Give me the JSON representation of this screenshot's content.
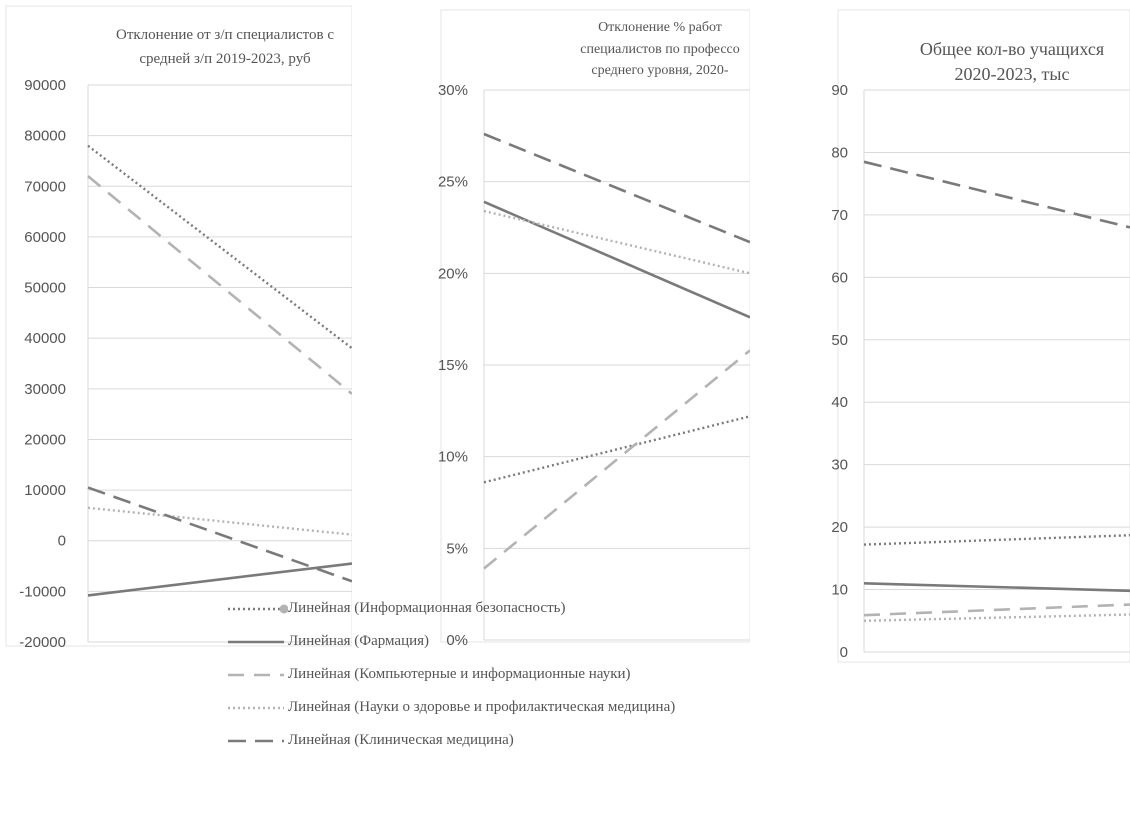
{
  "chart_data": [
    {
      "type": "line",
      "title": [
        "Отклонение от з/п специалистов с",
        "средней з/п 2019-2023, руб"
      ],
      "ylim": [
        -20000,
        90000
      ],
      "yticks": [
        90000,
        80000,
        70000,
        60000,
        50000,
        40000,
        30000,
        20000,
        10000,
        0,
        -10000,
        -20000
      ],
      "ytick_labels": [
        "90000",
        "80000",
        "70000",
        "60000",
        "50000",
        "40000",
        "30000",
        "20000",
        "10000",
        "0",
        "-10000",
        "-20000"
      ],
      "x": [
        0,
        1
      ],
      "series": [
        {
          "name": "Линейная (Информационная безопасность)",
          "style": "dotted-dark",
          "values": [
            78000,
            38000
          ]
        },
        {
          "name": "Линейная (Фармация)",
          "style": "solid",
          "values": [
            -10800,
            -4500
          ]
        },
        {
          "name": "Линейная (Компьютерные и информационные науки)",
          "style": "dash-light",
          "values": [
            72000,
            29000
          ]
        },
        {
          "name": "Линейная (Науки о здоровье и профилактическая медицина)",
          "style": "dotted-light",
          "values": [
            6500,
            1200
          ]
        },
        {
          "name": "Линейная (Клиническая медицина)",
          "style": "dash-dark",
          "values": [
            10500,
            -8000
          ]
        }
      ]
    },
    {
      "type": "line",
      "title": [
        "Отклонение % работ",
        "специалистов по профессо",
        "среднего уровня, 2020-"
      ],
      "ylim": [
        0,
        30
      ],
      "yticks": [
        30,
        25,
        20,
        15,
        10,
        5,
        0
      ],
      "ytick_labels": [
        "30%",
        "25%",
        "20%",
        "15%",
        "10%",
        "5%",
        "0%"
      ],
      "x": [
        0,
        1
      ],
      "series": [
        {
          "name": "Линейная (Информационная безопасность)",
          "style": "dotted-dark",
          "values": [
            8.6,
            12.2
          ]
        },
        {
          "name": "Линейная (Фармация)",
          "style": "solid",
          "values": [
            23.9,
            17.6
          ]
        },
        {
          "name": "Линейная (Компьютерные и информационные науки)",
          "style": "dash-light",
          "values": [
            3.9,
            15.8
          ]
        },
        {
          "name": "Линейная (Науки о здоровье и профилактическая медицина)",
          "style": "dotted-light",
          "values": [
            23.4,
            20.0
          ]
        },
        {
          "name": "Линейная (Клиническая медицина)",
          "style": "dash-dark",
          "values": [
            27.6,
            21.7
          ]
        }
      ]
    },
    {
      "type": "line",
      "title": [
        "Общее кол-во учащихся",
        "2020-2023, тыс"
      ],
      "ylim": [
        0,
        90
      ],
      "yticks": [
        90,
        80,
        70,
        60,
        50,
        40,
        30,
        20,
        10,
        0
      ],
      "ytick_labels": [
        "90",
        "80",
        "70",
        "60",
        "50",
        "40",
        "30",
        "20",
        "10",
        "0"
      ],
      "x": [
        0,
        1
      ],
      "series": [
        {
          "name": "Линейная (Информационная безопасность)",
          "style": "dotted-dark",
          "values": [
            17.2,
            18.7
          ]
        },
        {
          "name": "Линейная (Фармация)",
          "style": "solid",
          "values": [
            11.0,
            9.8
          ]
        },
        {
          "name": "Линейная (Компьютерные и информационные науки)",
          "style": "dash-light",
          "values": [
            5.9,
            7.6
          ]
        },
        {
          "name": "Линейная (Науки о здоровье и профилактическая медицина)",
          "style": "dotted-light",
          "values": [
            5.0,
            6.0
          ]
        },
        {
          "name": "Линейная (Клиническая медицина)",
          "style": "dash-dark",
          "values": [
            78.5,
            68.0
          ]
        }
      ]
    }
  ],
  "legend": [
    {
      "label": "Линейная (Информационная безопасность)",
      "style": "dotted-dark"
    },
    {
      "label": "Линейная (Фармация)",
      "style": "solid"
    },
    {
      "label": "Линейная (Компьютерные и информационные науки)",
      "style": "dash-light"
    },
    {
      "label": "Линейная (Науки о здоровье и профилактическая медицина)",
      "style": "dotted-light"
    },
    {
      "label": "Линейная (Клиническая медицина)",
      "style": "dash-dark"
    }
  ],
  "colors": {
    "grid": "#d9d9d9",
    "axis_text": "#555555",
    "series_dark": "#7a7a7a",
    "series_light": "#b3b3b3"
  }
}
